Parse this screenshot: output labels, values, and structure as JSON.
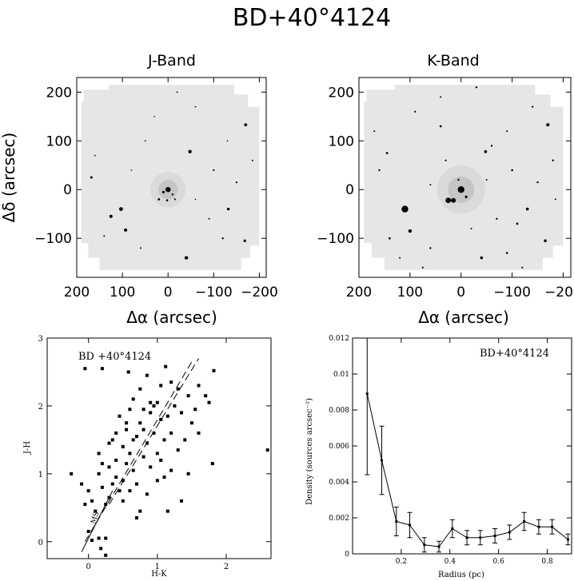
{
  "figure": {
    "title": "BD+40°4124"
  },
  "images": [
    {
      "label": "J-Band",
      "x_ticks": [
        200,
        100,
        0,
        -100,
        -200
      ],
      "y_ticks": [
        200,
        100,
        0,
        -100
      ],
      "xlim": [
        200,
        -215
      ],
      "ylim": [
        -180,
        230
      ],
      "xlabel": "Δα (arcsec)",
      "ylabel": "Δδ (arcsec)",
      "stars": [
        {
          "x": 0,
          "y": 0,
          "s": 3.2
        },
        {
          "x": 10,
          "y": -5,
          "s": 1.6
        },
        {
          "x": -10,
          "y": -10,
          "s": 1.2
        },
        {
          "x": 20,
          "y": -20,
          "s": 1.4
        },
        {
          "x": 2,
          "y": -22,
          "s": 1.3
        },
        {
          "x": -15,
          "y": -20,
          "s": 1.1
        },
        {
          "x": -48,
          "y": 78,
          "s": 2.2
        },
        {
          "x": 103,
          "y": -40,
          "s": 2.4
        },
        {
          "x": 125,
          "y": -55,
          "s": 2.0
        },
        {
          "x": 93,
          "y": -83,
          "s": 2.0
        },
        {
          "x": 168,
          "y": 25,
          "s": 1.5
        },
        {
          "x": -170,
          "y": 133,
          "s": 1.9
        },
        {
          "x": -168,
          "y": -105,
          "s": 1.7
        },
        {
          "x": -132,
          "y": -40,
          "s": 1.7
        },
        {
          "x": -40,
          "y": -140,
          "s": 2.2
        },
        {
          "x": -100,
          "y": 40,
          "s": 1.1
        },
        {
          "x": -150,
          "y": 15,
          "s": 1.1
        },
        {
          "x": 50,
          "y": 100,
          "s": 0.9
        },
        {
          "x": -60,
          "y": 170,
          "s": 0.9
        },
        {
          "x": 140,
          "y": -95,
          "s": 1.0
        },
        {
          "x": -120,
          "y": -100,
          "s": 1.2
        },
        {
          "x": -90,
          "y": -60,
          "s": 1.0
        },
        {
          "x": 60,
          "y": -120,
          "s": 1.0
        },
        {
          "x": 160,
          "y": 70,
          "s": 0.9
        },
        {
          "x": -185,
          "y": 60,
          "s": 1.0
        },
        {
          "x": -20,
          "y": 200,
          "s": 0.9
        },
        {
          "x": 30,
          "y": 150,
          "s": 0.8
        },
        {
          "x": -130,
          "y": 100,
          "s": 0.8
        },
        {
          "x": 80,
          "y": 40,
          "s": 0.8
        },
        {
          "x": -60,
          "y": -20,
          "s": 0.8
        }
      ]
    },
    {
      "label": "K-Band",
      "x_ticks": [
        200,
        100,
        0,
        -100,
        -200
      ],
      "y_ticks": [
        200,
        100,
        0,
        -100
      ],
      "xlim": [
        200,
        -215
      ],
      "ylim": [
        -180,
        230
      ],
      "xlabel": "Δα (arcsec)",
      "ylabel": "",
      "stars": [
        {
          "x": 0,
          "y": 0,
          "s": 4.2
        },
        {
          "x": 25,
          "y": -22,
          "s": 3.4
        },
        {
          "x": 15,
          "y": -22,
          "s": 3.0
        },
        {
          "x": -10,
          "y": -15,
          "s": 1.6
        },
        {
          "x": 5,
          "y": 20,
          "s": 1.2
        },
        {
          "x": 110,
          "y": -40,
          "s": 4.2
        },
        {
          "x": 100,
          "y": -85,
          "s": 2.2
        },
        {
          "x": -48,
          "y": 78,
          "s": 1.8
        },
        {
          "x": -170,
          "y": 133,
          "s": 2.0
        },
        {
          "x": -165,
          "y": -105,
          "s": 1.8
        },
        {
          "x": -130,
          "y": -40,
          "s": 1.8
        },
        {
          "x": -40,
          "y": -140,
          "s": 1.8
        },
        {
          "x": 145,
          "y": 75,
          "s": 1.4
        },
        {
          "x": 40,
          "y": 130,
          "s": 1.4
        },
        {
          "x": -60,
          "y": 90,
          "s": 1.2
        },
        {
          "x": -100,
          "y": 40,
          "s": 1.3
        },
        {
          "x": -150,
          "y": 15,
          "s": 1.2
        },
        {
          "x": -110,
          "y": -70,
          "s": 1.4
        },
        {
          "x": -90,
          "y": -130,
          "s": 1.3
        },
        {
          "x": 60,
          "y": -120,
          "s": 1.2
        },
        {
          "x": 140,
          "y": -100,
          "s": 1.3
        },
        {
          "x": -30,
          "y": 210,
          "s": 1.2
        },
        {
          "x": -180,
          "y": 60,
          "s": 1.2
        },
        {
          "x": 90,
          "y": 160,
          "s": 1.1
        },
        {
          "x": -70,
          "y": -60,
          "s": 1.2
        },
        {
          "x": 30,
          "y": 60,
          "s": 1.1
        },
        {
          "x": 170,
          "y": 120,
          "s": 1.0
        },
        {
          "x": -140,
          "y": 170,
          "s": 1.1
        },
        {
          "x": 75,
          "y": -160,
          "s": 1.1
        },
        {
          "x": -120,
          "y": -160,
          "s": 1.1
        },
        {
          "x": 160,
          "y": 40,
          "s": 1.2
        },
        {
          "x": -50,
          "y": 20,
          "s": 1.0
        },
        {
          "x": 40,
          "y": 190,
          "s": 1.0
        },
        {
          "x": -90,
          "y": 120,
          "s": 1.0
        },
        {
          "x": 120,
          "y": -140,
          "s": 1.0
        },
        {
          "x": -185,
          "y": -20,
          "s": 1.0
        },
        {
          "x": 60,
          "y": 10,
          "s": 1.0
        },
        {
          "x": -20,
          "y": -80,
          "s": 1.0
        }
      ]
    }
  ],
  "chart_data": [
    {
      "type": "scatter",
      "title": "BD +40°4124",
      "xlabel": "H-K",
      "ylabel": "J-H",
      "xlim": [
        -0.6,
        2.65
      ],
      "ylim": [
        -0.25,
        3.0
      ],
      "x_ticks": [
        0,
        1,
        2
      ],
      "y_ticks": [
        0,
        1,
        2,
        3
      ],
      "annotation": "MS",
      "points": [
        [
          -0.05,
          2.55
        ],
        [
          0.2,
          2.55
        ],
        [
          0.58,
          2.5
        ],
        [
          1.12,
          2.58
        ],
        [
          1.82,
          2.52
        ],
        [
          2.6,
          1.35
        ],
        [
          1.8,
          1.15
        ],
        [
          -0.25,
          1.0
        ],
        [
          -0.1,
          0.85
        ],
        [
          -0.05,
          0.55
        ],
        [
          0.0,
          0.15
        ],
        [
          0.05,
          0.02
        ],
        [
          0.15,
          0.05
        ],
        [
          0.18,
          -0.1
        ],
        [
          0.25,
          -0.2
        ],
        [
          0.25,
          0.05
        ],
        [
          0.05,
          0.6
        ],
        [
          0.0,
          0.75
        ],
        [
          0.15,
          1.0
        ],
        [
          0.15,
          1.3
        ],
        [
          0.2,
          0.8
        ],
        [
          0.25,
          0.55
        ],
        [
          0.3,
          0.65
        ],
        [
          0.35,
          0.85
        ],
        [
          0.3,
          1.1
        ],
        [
          0.4,
          1.2
        ],
        [
          0.4,
          0.95
        ],
        [
          0.45,
          0.75
        ],
        [
          0.5,
          0.9
        ],
        [
          0.5,
          1.4
        ],
        [
          0.55,
          1.15
        ],
        [
          0.55,
          1.65
        ],
        [
          0.6,
          1.3
        ],
        [
          0.6,
          1.95
        ],
        [
          0.65,
          1.05
        ],
        [
          0.65,
          2.1
        ],
        [
          0.7,
          1.55
        ],
        [
          0.7,
          0.85
        ],
        [
          0.75,
          1.75
        ],
        [
          0.75,
          2.25
        ],
        [
          0.8,
          1.25
        ],
        [
          0.8,
          1.95
        ],
        [
          0.85,
          0.7
        ],
        [
          0.85,
          1.45
        ],
        [
          0.9,
          2.05
        ],
        [
          0.9,
          1.1
        ],
        [
          0.95,
          1.6
        ],
        [
          0.95,
          2.0
        ],
        [
          1.0,
          0.9
        ],
        [
          1.0,
          1.3
        ],
        [
          1.05,
          1.8
        ],
        [
          1.05,
          2.3
        ],
        [
          1.1,
          1.5
        ],
        [
          1.1,
          0.95
        ],
        [
          1.15,
          1.85
        ],
        [
          1.2,
          1.05
        ],
        [
          1.2,
          1.6
        ],
        [
          1.25,
          2.0
        ],
        [
          1.3,
          1.35
        ],
        [
          1.3,
          2.25
        ],
        [
          1.35,
          1.9
        ],
        [
          1.35,
          0.6
        ],
        [
          1.4,
          1.5
        ],
        [
          1.45,
          2.15
        ],
        [
          1.5,
          1.75
        ],
        [
          1.55,
          1.95
        ],
        [
          1.6,
          2.3
        ],
        [
          1.6,
          1.6
        ],
        [
          1.7,
          2.15
        ],
        [
          1.75,
          2.05
        ],
        [
          1.15,
          0.45
        ],
        [
          0.6,
          0.75
        ],
        [
          0.7,
          0.35
        ],
        [
          0.45,
          1.85
        ],
        [
          0.35,
          1.5
        ],
        [
          0.2,
          1.15
        ],
        [
          0.1,
          0.45
        ],
        [
          0.85,
          2.45
        ],
        [
          1.0,
          2.05
        ],
        [
          0.55,
          1.75
        ],
        [
          0.65,
          1.5
        ],
        [
          0.8,
          1.65
        ],
        [
          0.9,
          1.9
        ],
        [
          1.05,
          1.2
        ],
        [
          1.2,
          2.35
        ],
        [
          0.75,
          0.45
        ],
        [
          0.5,
          0.6
        ],
        [
          0.4,
          1.6
        ],
        [
          0.3,
          1.45
        ],
        [
          1.45,
          1.0
        ]
      ],
      "lines": [
        {
          "name": "upper",
          "x": [
            -0.05,
            1.5
          ],
          "y": [
            0.0,
            2.65
          ]
        },
        {
          "name": "lower",
          "x": [
            0.3,
            1.6
          ],
          "y": [
            0.55,
            2.7
          ]
        },
        {
          "name": "ms",
          "x": [
            -0.1,
            0.35
          ],
          "y": [
            -0.15,
            0.75
          ]
        }
      ]
    },
    {
      "type": "line",
      "title": "BD+40°4124",
      "xlabel": "Radius (pc)",
      "ylabel": "Density (sources arcsec⁻²)",
      "xlim": [
        0.0,
        0.9
      ],
      "ylim": [
        0.0,
        0.012
      ],
      "x_ticks": [
        0.2,
        0.4,
        0.6,
        0.8
      ],
      "y_ticks": [
        0,
        0.002,
        0.004,
        0.006,
        0.008,
        0.01,
        0.012
      ],
      "x": [
        0.06,
        0.12,
        0.18,
        0.235,
        0.295,
        0.355,
        0.41,
        0.47,
        0.525,
        0.585,
        0.645,
        0.705,
        0.765,
        0.82,
        0.885
      ],
      "y": [
        0.0089,
        0.0052,
        0.0018,
        0.0016,
        0.0005,
        0.0004,
        0.0014,
        0.0009,
        0.0009,
        0.001,
        0.0012,
        0.0018,
        0.0015,
        0.0015,
        0.0008
      ],
      "err": [
        0.0045,
        0.0019,
        0.0008,
        0.0007,
        0.0004,
        0.0003,
        0.0005,
        0.0004,
        0.0004,
        0.0004,
        0.0004,
        0.0005,
        0.0004,
        0.0004,
        0.0003
      ]
    }
  ]
}
